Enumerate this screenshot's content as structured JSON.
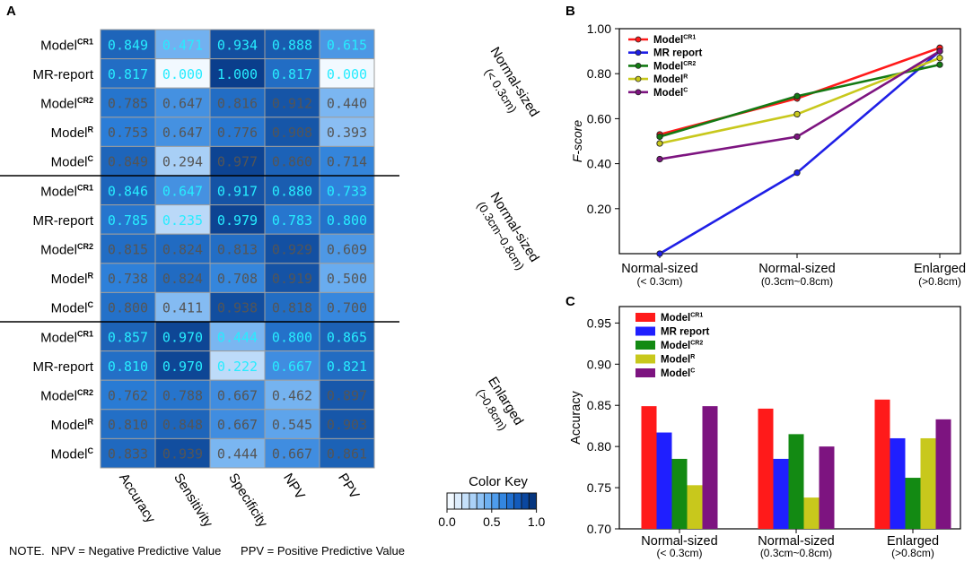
{
  "colors": {
    "cyan_text": "#27ecff",
    "gray_text": "#555555",
    "cell_border": "#9e9e9e"
  },
  "panel_a": {
    "letter": "A",
    "rows": [
      {
        "base": "Model",
        "sup": "CR1"
      },
      {
        "base": "MR-report",
        "sup": ""
      },
      {
        "base": "Model",
        "sup": "CR2"
      },
      {
        "base": "Model",
        "sup": "R"
      },
      {
        "base": "Model",
        "sup": "C"
      },
      {
        "base": "Model",
        "sup": "CR1"
      },
      {
        "base": "MR-report",
        "sup": ""
      },
      {
        "base": "Model",
        "sup": "CR2"
      },
      {
        "base": "Model",
        "sup": "R"
      },
      {
        "base": "Model",
        "sup": "C"
      },
      {
        "base": "Model",
        "sup": "CR1"
      },
      {
        "base": "MR-report",
        "sup": ""
      },
      {
        "base": "Model",
        "sup": "CR2"
      },
      {
        "base": "Model",
        "sup": "R"
      },
      {
        "base": "Model",
        "sup": "C"
      }
    ],
    "columns": [
      "Accuracy",
      "Sensitivity",
      "Specificity",
      "NPV",
      "PPV"
    ],
    "group_labels": [
      {
        "line1": "Normal-sized",
        "line2": "(< 0.3cm)"
      },
      {
        "line1": "Normal-sized",
        "line2": "(0.3cm~0.8cm)"
      },
      {
        "line1": "Enlarged",
        "line2": "(>0.8cm)"
      }
    ],
    "values": [
      [
        "0.849",
        "0.471",
        "0.934",
        "0.888",
        "0.615"
      ],
      [
        "0.817",
        "0.000",
        "1.000",
        "0.817",
        "0.000"
      ],
      [
        "0.785",
        "0.647",
        "0.816",
        "0.912",
        "0.440"
      ],
      [
        "0.753",
        "0.647",
        "0.776",
        "0.908",
        "0.393"
      ],
      [
        "0.849",
        "0.294",
        "0.977",
        "0.860",
        "0.714"
      ],
      [
        "0.846",
        "0.647",
        "0.917",
        "0.880",
        "0.733"
      ],
      [
        "0.785",
        "0.235",
        "0.979",
        "0.783",
        "0.800"
      ],
      [
        "0.815",
        "0.824",
        "0.813",
        "0.929",
        "0.609"
      ],
      [
        "0.738",
        "0.824",
        "0.708",
        "0.919",
        "0.500"
      ],
      [
        "0.800",
        "0.411",
        "0.938",
        "0.818",
        "0.700"
      ],
      [
        "0.857",
        "0.970",
        "0.444",
        "0.800",
        "0.865"
      ],
      [
        "0.810",
        "0.970",
        "0.222",
        "0.667",
        "0.821"
      ],
      [
        "0.762",
        "0.788",
        "0.667",
        "0.462",
        "0.897"
      ],
      [
        "0.810",
        "0.848",
        "0.667",
        "0.545",
        "0.903"
      ],
      [
        "0.833",
        "0.939",
        "0.444",
        "0.667",
        "0.861"
      ]
    ],
    "text_style": [
      [
        "c",
        "c",
        "c",
        "c",
        "c"
      ],
      [
        "c",
        "c",
        "c",
        "c",
        "c"
      ],
      [
        "g",
        "g",
        "g",
        "g",
        "g"
      ],
      [
        "g",
        "g",
        "g",
        "g",
        "g"
      ],
      [
        "g",
        "g",
        "g",
        "g",
        "g"
      ],
      [
        "c",
        "c",
        "c",
        "c",
        "c"
      ],
      [
        "c",
        "c",
        "c",
        "c",
        "c"
      ],
      [
        "g",
        "g",
        "g",
        "g",
        "g"
      ],
      [
        "g",
        "g",
        "g",
        "g",
        "g"
      ],
      [
        "g",
        "g",
        "g",
        "g",
        "g"
      ],
      [
        "c",
        "c",
        "c",
        "c",
        "c"
      ],
      [
        "c",
        "c",
        "c",
        "c",
        "c"
      ],
      [
        "g",
        "g",
        "g",
        "g",
        "g"
      ],
      [
        "g",
        "g",
        "g",
        "g",
        "g"
      ],
      [
        "g",
        "g",
        "g",
        "g",
        "g"
      ]
    ],
    "color_key": {
      "title": "Color Key",
      "ticks": [
        "0.0",
        "0.5",
        "1.0"
      ],
      "swatches": [
        "#f2f9ff",
        "#dcecfc",
        "#c5e0fa",
        "#abd2f8",
        "#8ec2f5",
        "#6db0f1",
        "#4e9cec",
        "#3386e1",
        "#206fd0",
        "#135bbc",
        "#0a479f",
        "#06367f"
      ]
    },
    "note": "NOTE.  NPV = Negative Predictive Value      PPV = Positive Predictive Value"
  },
  "chart_data": [
    {
      "panel": "B",
      "type": "line",
      "categories": [
        {
          "line1": "Normal-sized",
          "line2": "(< 0.3cm)"
        },
        {
          "line1": "Normal-sized",
          "line2": "(0.3cm~0.8cm)"
        },
        {
          "line1": "Enlarged",
          "line2": "(>0.8cm)"
        }
      ],
      "ylabel": "F-score",
      "ylim": [
        0.0,
        1.0
      ],
      "yticks": [
        0.2,
        0.4,
        0.6,
        0.8,
        1.0
      ],
      "ytick_labels": [
        "0.20",
        "0.40",
        "0.60",
        "0.80",
        "1.00"
      ],
      "legend_position": "top-left",
      "series": [
        {
          "name": "Model",
          "sup": "CR1",
          "color": "#ff1a1a",
          "values": [
            0.53,
            0.69,
            0.915
          ]
        },
        {
          "name": "MR report",
          "sup": "",
          "color": "#1f1fe6",
          "values": [
            0.0,
            0.36,
            0.9
          ]
        },
        {
          "name": "Model",
          "sup": "CR2",
          "color": "#137a13",
          "values": [
            0.52,
            0.7,
            0.84
          ]
        },
        {
          "name": "Model",
          "sup": "R",
          "color": "#c8c81c",
          "values": [
            0.49,
            0.62,
            0.87
          ]
        },
        {
          "name": "Model",
          "sup": "C",
          "color": "#7d1480",
          "values": [
            0.42,
            0.52,
            0.9
          ]
        }
      ]
    },
    {
      "panel": "C",
      "type": "bar",
      "categories": [
        {
          "line1": "Normal-sized",
          "line2": "(< 0.3cm)"
        },
        {
          "line1": "Normal-sized",
          "line2": "(0.3cm~0.8cm)"
        },
        {
          "line1": "Enlarged",
          "line2": "(>0.8cm)"
        }
      ],
      "ylabel": "Accuracy",
      "ylim": [
        0.7,
        0.97
      ],
      "yticks": [
        0.7,
        0.75,
        0.8,
        0.85,
        0.9,
        0.95
      ],
      "ytick_labels": [
        "0.70",
        "0.75",
        "0.80",
        "0.85",
        "0.90",
        "0.95"
      ],
      "legend_position": "top-left",
      "series": [
        {
          "name": "Model",
          "sup": "CR1",
          "color": "#ff1a1a",
          "values": [
            0.849,
            0.846,
            0.857
          ]
        },
        {
          "name": "MR report",
          "sup": "",
          "color": "#1f1fff",
          "values": [
            0.817,
            0.785,
            0.81
          ]
        },
        {
          "name": "Model",
          "sup": "CR2",
          "color": "#138a13",
          "values": [
            0.785,
            0.815,
            0.762
          ]
        },
        {
          "name": "Model",
          "sup": "R",
          "color": "#c8c81c",
          "values": [
            0.753,
            0.738,
            0.81
          ]
        },
        {
          "name": "Model",
          "sup": "C",
          "color": "#7d1480",
          "values": [
            0.849,
            0.8,
            0.833
          ]
        }
      ]
    }
  ]
}
